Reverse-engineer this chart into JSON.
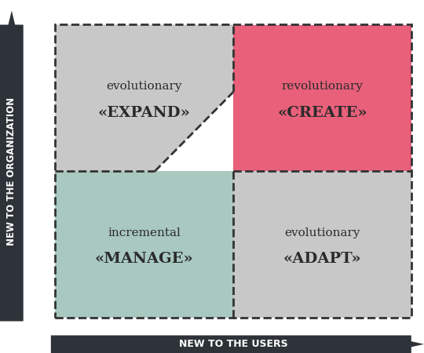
{
  "bg_color": "#ffffff",
  "axis_bar_color": "#2d3338",
  "quadrants": [
    {
      "label_top": "evolutionary",
      "label_bottom": "«EXPAND»",
      "color": "#c8c8c8",
      "qx": 0,
      "qy": 1
    },
    {
      "label_top": "revolutionary",
      "label_bottom": "«CREATE»",
      "color": "#e8607a",
      "qx": 1,
      "qy": 1
    },
    {
      "label_top": "incremental",
      "label_bottom": "«MANAGE»",
      "color": "#a8c8c0",
      "qx": 0,
      "qy": 0
    },
    {
      "label_top": "evolutionary",
      "label_bottom": "«ADAPT»",
      "color": "#c8c8c8",
      "qx": 1,
      "qy": 0
    }
  ],
  "dashed_color": "#333333",
  "text_color": "#2b2b2b",
  "xlabel": "NEW TO THE USERS",
  "ylabel": "NEW TO THE ORGANIZATION",
  "label_fontsize": 11,
  "sublabel_fontsize": 14
}
